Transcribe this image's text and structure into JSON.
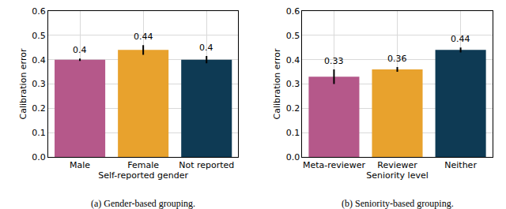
{
  "chart_data": [
    {
      "type": "bar",
      "title": "(a) Gender-based grouping.",
      "x_label": "Self-reported gender",
      "y_label": "Calibration error",
      "categories": [
        "Male",
        "Female",
        "Not reported"
      ],
      "values": [
        0.4,
        0.44,
        0.4
      ],
      "errors": [
        0.005,
        0.02,
        0.015
      ],
      "colors": [
        "#b5588a",
        "#e8a22d",
        "#0e3a54"
      ],
      "ylim": [
        0,
        0.6
      ],
      "yticks": [
        {
          "value": 0,
          "label": "0.0"
        },
        0.1,
        0.2,
        0.3,
        0.4,
        0.5,
        0.6
      ],
      "grid": true,
      "data_labels": true
    },
    {
      "type": "bar",
      "title": "(b) Seniority-based grouping.",
      "x_label": "Seniority level",
      "y_label": "Calibration error",
      "categories": [
        "Meta-reviewer",
        "Reviewer",
        "Neither"
      ],
      "values": [
        0.33,
        0.36,
        0.44
      ],
      "errors": [
        0.03,
        0.01,
        0.01
      ],
      "colors": [
        "#b5588a",
        "#e8a22d",
        "#0e3a54"
      ],
      "ylim": [
        0,
        0.6
      ],
      "yticks": [
        {
          "value": 0,
          "label": "0.0"
        },
        0.1,
        0.2,
        0.3,
        0.4,
        0.5,
        0.6
      ],
      "grid": true,
      "data_labels": true
    }
  ]
}
